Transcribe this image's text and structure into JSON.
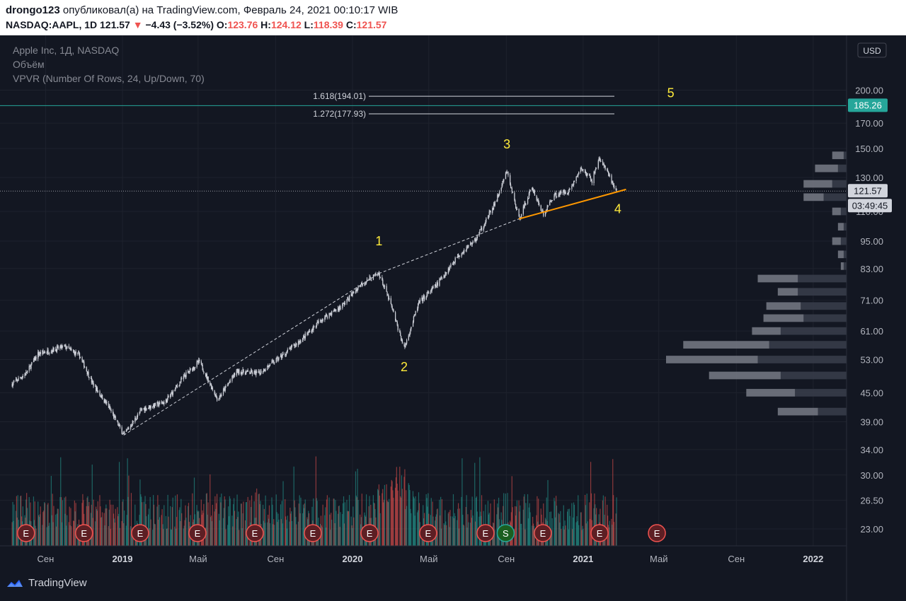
{
  "header": {
    "author": "drongo123",
    "published_text": "опубликовал(а) на TradingView.com, Февраль 24, 2021 00:10:17 WIB",
    "symbol": "NASDAQ:AAPL, 1D",
    "last": "121.57",
    "change": "−4.43 (−3.52%)",
    "o_label": "O:",
    "o_val": "123.76",
    "h_label": "H:",
    "h_val": "124.12",
    "l_label": "L:",
    "l_val": "118.39",
    "c_label": "C:",
    "c_val": "121.57"
  },
  "legend": {
    "line1": "Apple Inc, 1Д, NASDAQ",
    "line2": "Объём",
    "line3": "VPVR (Number Of Rows, 24, Up/Down, 70)"
  },
  "currency_button": "USD",
  "price_badge": "185.26",
  "last_price_badge": "121.57",
  "countdown_badge": "03:49:45",
  "logo_text": "TradingView",
  "colors": {
    "background": "#131722",
    "teal_line": "#26a69a",
    "orange_trend": "#ff9800",
    "wave_label": "#ffeb3b",
    "vol_up": "#26a69a",
    "vol_down": "#ef5350"
  },
  "chart_data": {
    "type": "candlestick",
    "scale": "log",
    "y_ticks": [
      "200.00",
      "170.00",
      "150.00",
      "130.00",
      "110.00",
      "95.00",
      "83.00",
      "71.00",
      "61.00",
      "53.00",
      "45.00",
      "39.00",
      "34.00",
      "30.00",
      "26.50",
      "23.00"
    ],
    "y_tick_values": [
      200,
      170,
      150,
      130,
      110,
      95,
      83,
      71,
      61,
      53,
      45,
      39,
      34,
      30,
      26.5,
      23
    ],
    "x_ticks": [
      {
        "label": "Сен",
        "date": "2018-09-01"
      },
      {
        "label": "2019",
        "date": "2019-01-01"
      },
      {
        "label": "Май",
        "date": "2019-05-01"
      },
      {
        "label": "Сен",
        "date": "2019-09-01"
      },
      {
        "label": "2020",
        "date": "2020-01-01"
      },
      {
        "label": "Май",
        "date": "2020-05-01"
      },
      {
        "label": "Сен",
        "date": "2020-09-01"
      },
      {
        "label": "2021",
        "date": "2021-01-01"
      },
      {
        "label": "Май",
        "date": "2021-05-01"
      },
      {
        "label": "Сен",
        "date": "2021-09-01"
      },
      {
        "label": "2022",
        "date": "2022-01-01"
      }
    ],
    "price_path": [
      {
        "date": "2018-07-10",
        "price": 47.0
      },
      {
        "date": "2018-08-01",
        "price": 49.5
      },
      {
        "date": "2018-08-20",
        "price": 54.5
      },
      {
        "date": "2018-09-10",
        "price": 55.5
      },
      {
        "date": "2018-10-01",
        "price": 56.5
      },
      {
        "date": "2018-10-25",
        "price": 54.0
      },
      {
        "date": "2018-11-15",
        "price": 47.0
      },
      {
        "date": "2018-12-10",
        "price": 42.0
      },
      {
        "date": "2019-01-03",
        "price": 36.5
      },
      {
        "date": "2019-02-01",
        "price": 41.5
      },
      {
        "date": "2019-03-10",
        "price": 43.0
      },
      {
        "date": "2019-04-10",
        "price": 49.0
      },
      {
        "date": "2019-05-03",
        "price": 52.5
      },
      {
        "date": "2019-06-01",
        "price": 43.5
      },
      {
        "date": "2019-07-01",
        "price": 50.0
      },
      {
        "date": "2019-08-05",
        "price": 49.5
      },
      {
        "date": "2019-09-15",
        "price": 54.5
      },
      {
        "date": "2019-10-15",
        "price": 59.0
      },
      {
        "date": "2019-11-15",
        "price": 65.0
      },
      {
        "date": "2019-12-15",
        "price": 69.0
      },
      {
        "date": "2020-01-15",
        "price": 77.0
      },
      {
        "date": "2020-02-12",
        "price": 81.0
      },
      {
        "date": "2020-03-01",
        "price": 70.0
      },
      {
        "date": "2020-03-23",
        "price": 56.0
      },
      {
        "date": "2020-04-15",
        "price": 70.0
      },
      {
        "date": "2020-05-15",
        "price": 77.0
      },
      {
        "date": "2020-06-15",
        "price": 88.0
      },
      {
        "date": "2020-07-15",
        "price": 96.0
      },
      {
        "date": "2020-08-15",
        "price": 115.0
      },
      {
        "date": "2020-09-02",
        "price": 134.0
      },
      {
        "date": "2020-09-21",
        "price": 106.0
      },
      {
        "date": "2020-10-12",
        "price": 124.0
      },
      {
        "date": "2020-10-30",
        "price": 108.0
      },
      {
        "date": "2020-11-15",
        "price": 119.0
      },
      {
        "date": "2020-12-10",
        "price": 122.0
      },
      {
        "date": "2020-12-29",
        "price": 136.0
      },
      {
        "date": "2021-01-15",
        "price": 128.0
      },
      {
        "date": "2021-01-26",
        "price": 143.0
      },
      {
        "date": "2021-02-05",
        "price": 136.0
      },
      {
        "date": "2021-02-23",
        "price": 121.6
      }
    ],
    "horizontal_lines": [
      {
        "label": "1.618(194.01)",
        "price": 194.01
      },
      {
        "label": "1.272(177.93)",
        "price": 177.93
      },
      {
        "price": 185.26
      },
      {
        "price": 121.57
      }
    ],
    "wave_labels": [
      {
        "text": "1",
        "date": "2020-02-12",
        "price": 93
      },
      {
        "text": "2",
        "date": "2020-03-23",
        "price": 50
      },
      {
        "text": "3",
        "date": "2020-09-02",
        "price": 150
      },
      {
        "text": "4",
        "date": "2021-02-25",
        "price": 109
      },
      {
        "text": "5",
        "date": "2021-05-20",
        "price": 193
      }
    ],
    "earnings_markers": [
      {
        "text": "E",
        "date": "2018-08-01"
      },
      {
        "text": "E",
        "date": "2018-11-01"
      },
      {
        "text": "E",
        "date": "2019-01-29"
      },
      {
        "text": "E",
        "date": "2019-04-30"
      },
      {
        "text": "E",
        "date": "2019-07-30"
      },
      {
        "text": "E",
        "date": "2019-10-30"
      },
      {
        "text": "E",
        "date": "2020-01-28"
      },
      {
        "text": "E",
        "date": "2020-04-30"
      },
      {
        "text": "E",
        "date": "2020-07-30"
      },
      {
        "text": "S",
        "date": "2020-08-31"
      },
      {
        "text": "E",
        "date": "2020-10-29"
      },
      {
        "text": "E",
        "date": "2021-01-27"
      },
      {
        "text": "E",
        "date": "2021-04-28"
      }
    ],
    "volume_profile": [
      {
        "price": 145,
        "up": 4,
        "down": 1
      },
      {
        "price": 136,
        "up": 8,
        "down": 3
      },
      {
        "price": 126,
        "up": 10,
        "down": 5
      },
      {
        "price": 118,
        "up": 7,
        "down": 8
      },
      {
        "price": 110,
        "up": 3,
        "down": 2
      },
      {
        "price": 102,
        "up": 2,
        "down": 1
      },
      {
        "price": 95,
        "up": 3,
        "down": 2
      },
      {
        "price": 89,
        "up": 2,
        "down": 1
      },
      {
        "price": 84,
        "up": 1,
        "down": 1
      },
      {
        "price": 79,
        "up": 14,
        "down": 17
      },
      {
        "price": 74,
        "up": 7,
        "down": 17
      },
      {
        "price": 69,
        "up": 12,
        "down": 16
      },
      {
        "price": 65,
        "up": 14,
        "down": 15
      },
      {
        "price": 61,
        "up": 10,
        "down": 23
      },
      {
        "price": 57,
        "up": 30,
        "down": 27
      },
      {
        "price": 53,
        "up": 32,
        "down": 31
      },
      {
        "price": 49,
        "up": 25,
        "down": 23
      },
      {
        "price": 45,
        "up": 17,
        "down": 18
      },
      {
        "price": 41,
        "up": 14,
        "down": 10
      }
    ]
  }
}
